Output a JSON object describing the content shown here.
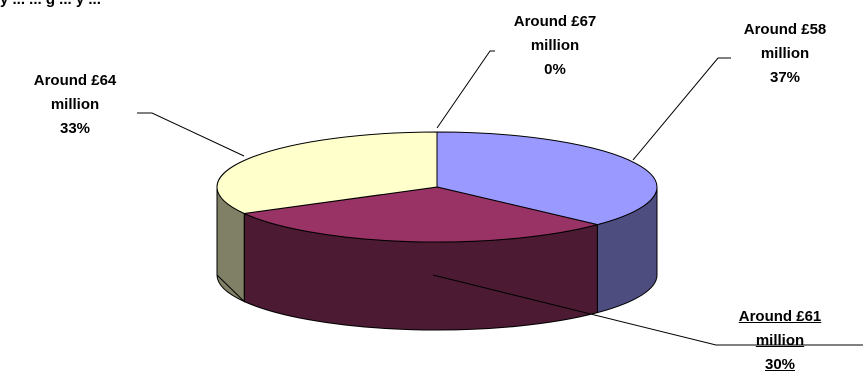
{
  "header_fragment": "y ... ... g ... y ...",
  "chart_data": {
    "type": "pie",
    "style": "3d",
    "slices": [
      {
        "label_lines": [
          "Around £58",
          "million",
          "37%"
        ],
        "value": 37,
        "color": "#9999ff",
        "side_color": "#4d4d80"
      },
      {
        "label_lines": [
          "Around £61",
          "million",
          "30%"
        ],
        "value": 30,
        "color": "#993366",
        "side_color": "#4c1a33"
      },
      {
        "label_lines": [
          "Around £64",
          "million",
          "33%"
        ],
        "value": 33,
        "color": "#ffffcc",
        "side_color": "#808066"
      },
      {
        "label_lines": [
          "Around £67",
          "million",
          "0%"
        ],
        "value": 0,
        "color": "#ccffff",
        "side_color": "#668080"
      }
    ],
    "underlined_label": "Around £61 million 30%"
  }
}
